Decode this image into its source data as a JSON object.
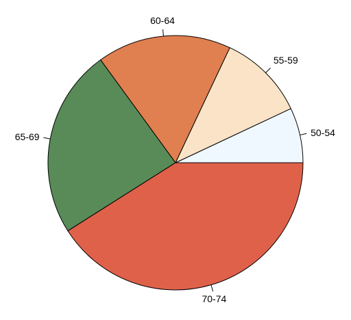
{
  "chart_data": {
    "type": "pie",
    "start_angle_deg": 0,
    "direction": "counterclockwise",
    "slices": [
      {
        "label": "50-54",
        "value": 7,
        "color": "#F0F8FF"
      },
      {
        "label": "55-59",
        "value": 11,
        "color": "#FAE3C6"
      },
      {
        "label": "60-64",
        "value": 17,
        "color": "#E07F50"
      },
      {
        "label": "65-69",
        "value": 24,
        "color": "#588B58"
      },
      {
        "label": "70-74",
        "value": 41,
        "color": "#E0614A"
      }
    ]
  }
}
